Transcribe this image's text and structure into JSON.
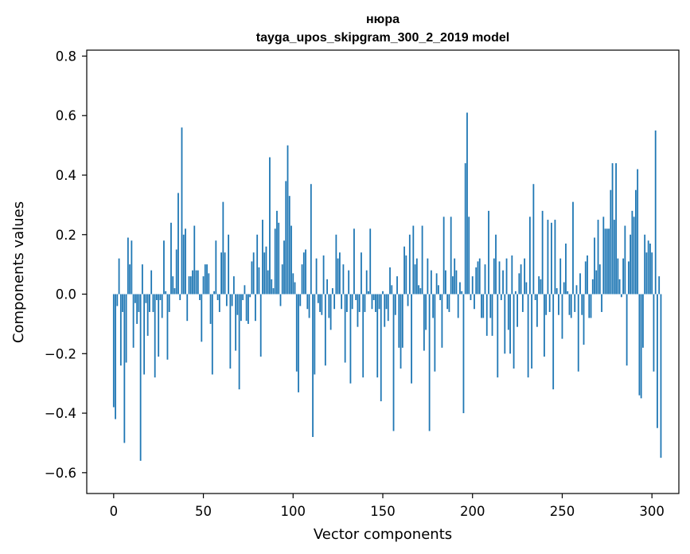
{
  "chart_data": {
    "type": "bar",
    "title_line1": "нюра",
    "title_line2": "tayga_upos_skipgram_300_2_2019 model",
    "xlabel": "Vector components",
    "ylabel": "Components values",
    "xlim": [
      -15,
      315
    ],
    "ylim": [
      -0.67,
      0.82
    ],
    "xticks": [
      0,
      50,
      100,
      150,
      200,
      250,
      300
    ],
    "xtick_labels": [
      "0",
      "50",
      "100",
      "150",
      "200",
      "250",
      "300"
    ],
    "yticks": [
      -0.6,
      -0.4,
      -0.2,
      0.0,
      0.2,
      0.4,
      0.6,
      0.8
    ],
    "ytick_labels": [
      "−0.6",
      "−0.4",
      "−0.2",
      "0.0",
      "0.2",
      "0.4",
      "0.6",
      "0.8"
    ],
    "bar_color": "#1f77b4",
    "values": [
      -0.38,
      -0.42,
      -0.04,
      0.12,
      -0.24,
      -0.06,
      -0.5,
      -0.23,
      0.19,
      0.1,
      0.18,
      -0.18,
      -0.03,
      -0.1,
      -0.06,
      -0.56,
      0.1,
      -0.27,
      -0.03,
      -0.14,
      -0.06,
      0.08,
      -0.06,
      -0.28,
      -0.02,
      -0.21,
      -0.02,
      -0.08,
      0.18,
      0.01,
      -0.22,
      -0.06,
      0.24,
      0.06,
      0.02,
      0.15,
      0.34,
      -0.02,
      0.56,
      0.2,
      0.22,
      -0.09,
      0.06,
      0.06,
      0.08,
      0.23,
      0.08,
      0.08,
      -0.02,
      -0.16,
      0.06,
      0.1,
      0.1,
      0.07,
      -0.1,
      -0.27,
      0.01,
      0.18,
      -0.02,
      -0.06,
      0.14,
      0.31,
      0.14,
      -0.04,
      0.2,
      -0.25,
      -0.04,
      0.06,
      -0.19,
      -0.07,
      -0.32,
      -0.09,
      -0.02,
      0.03,
      -0.09,
      -0.1,
      -0.01,
      0.11,
      0.14,
      -0.09,
      0.2,
      0.09,
      -0.21,
      0.25,
      0.14,
      0.16,
      0.08,
      0.46,
      0.05,
      0.02,
      0.22,
      0.28,
      0.24,
      -0.04,
      0.1,
      0.18,
      0.38,
      0.5,
      0.33,
      0.23,
      0.07,
      0.04,
      -0.26,
      -0.33,
      -0.04,
      0.1,
      0.14,
      0.15,
      -0.05,
      -0.08,
      0.37,
      -0.48,
      -0.27,
      0.12,
      -0.03,
      -0.06,
      -0.07,
      0.13,
      -0.24,
      0.05,
      -0.08,
      -0.12,
      0.02,
      -0.05,
      0.2,
      0.12,
      0.14,
      -0.05,
      0.1,
      -0.23,
      -0.06,
      0.08,
      -0.3,
      -0.05,
      0.22,
      -0.02,
      -0.11,
      -0.06,
      0.14,
      -0.28,
      -0.06,
      0.08,
      0.01,
      0.22,
      -0.05,
      -0.02,
      -0.06,
      -0.28,
      -0.05,
      -0.36,
      0.01,
      -0.11,
      -0.05,
      -0.09,
      0.09,
      0.03,
      -0.46,
      -0.07,
      0.06,
      -0.18,
      -0.25,
      -0.18,
      0.16,
      0.13,
      -0.04,
      0.2,
      -0.3,
      0.23,
      0.1,
      0.12,
      0.03,
      0.02,
      0.23,
      -0.19,
      -0.12,
      0.12,
      -0.46,
      0.08,
      -0.08,
      -0.26,
      0.07,
      0.03,
      -0.02,
      -0.18,
      0.26,
      0.08,
      -0.05,
      -0.06,
      0.26,
      0.06,
      0.12,
      0.08,
      -0.08,
      0.04,
      0.01,
      -0.4,
      0.44,
      0.61,
      0.26,
      -0.02,
      0.06,
      -0.05,
      0.09,
      0.11,
      0.12,
      -0.08,
      -0.08,
      0.1,
      -0.14,
      0.28,
      -0.08,
      -0.14,
      0.12,
      0.2,
      -0.28,
      0.11,
      -0.02,
      0.08,
      -0.2,
      0.12,
      -0.12,
      -0.2,
      0.13,
      -0.25,
      0.01,
      -0.11,
      0.07,
      0.1,
      -0.06,
      0.12,
      0.04,
      -0.28,
      0.26,
      -0.25,
      0.37,
      -0.02,
      -0.11,
      0.06,
      0.05,
      0.28,
      -0.21,
      -0.07,
      0.25,
      -0.06,
      0.24,
      -0.32,
      0.25,
      0.02,
      -0.07,
      0.12,
      -0.15,
      0.04,
      0.17,
      0.01,
      -0.07,
      -0.08,
      0.31,
      -0.06,
      0.03,
      -0.26,
      0.07,
      -0.07,
      -0.17,
      0.11,
      0.13,
      -0.08,
      -0.08,
      0.05,
      0.19,
      0.08,
      0.25,
      0.1,
      -0.06,
      0.26,
      0.22,
      0.22,
      0.22,
      0.35,
      0.44,
      0.25,
      0.44,
      0.12,
      0.05,
      -0.01,
      0.12,
      0.23,
      -0.24,
      0.11,
      0.2,
      0.28,
      0.26,
      0.35,
      0.42,
      -0.34,
      -0.35,
      -0.18,
      0.2,
      0.14,
      0.18,
      0.17,
      0.14,
      -0.26,
      0.55,
      -0.45,
      0.06,
      -0.55
    ],
    "values_note": ""
  }
}
